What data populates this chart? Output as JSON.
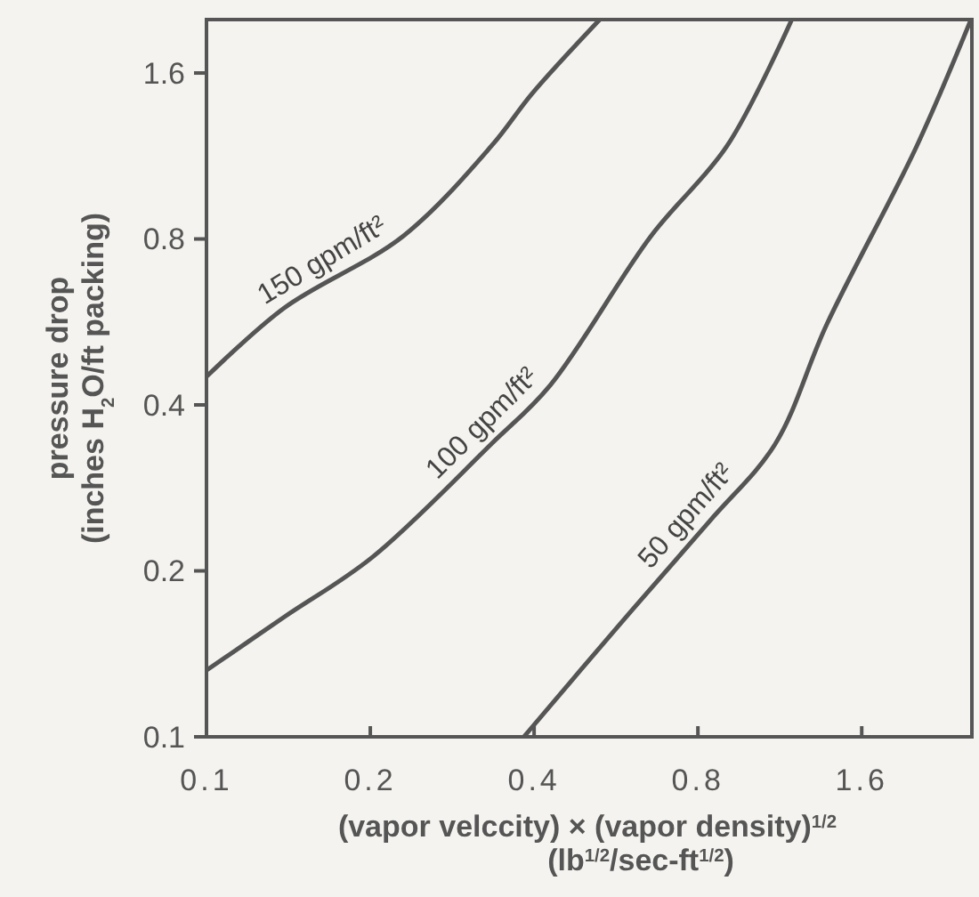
{
  "chart_data": {
    "type": "line",
    "xlabel": "(vapor velccity) × (vapor density)$^{1/2}$\n(lb$^{1/2}$/sec-ft$^{1/2}$)",
    "ylabel": "pressure drop\n(inches H$_{2}$O/ft packing)",
    "log": "xy",
    "xlim": [
      0.1,
      2.55
    ],
    "ylim": [
      0.1,
      2.0
    ],
    "xticks": [
      0.1,
      0.2,
      0.4,
      0.8,
      1.6
    ],
    "yticks": [
      0.1,
      0.2,
      0.4,
      0.8,
      1.6
    ],
    "grid": false,
    "marker": "none",
    "line_style": "solid",
    "series": [
      {
        "name": "150 gpm/ft²",
        "color": "#555555",
        "x": [
          0.1,
          0.139,
          0.23,
          0.334,
          0.397,
          0.528
        ],
        "values": [
          0.45,
          0.6,
          0.81,
          1.18,
          1.47,
          2.0
        ]
      },
      {
        "name": "100 gpm/ft²",
        "color": "#555555",
        "x": [
          0.1,
          0.139,
          0.202,
          0.334,
          0.428,
          0.656,
          0.905,
          1.19
        ],
        "values": [
          0.132,
          0.165,
          0.212,
          0.34,
          0.434,
          0.81,
          1.18,
          2.0
        ]
      },
      {
        "name": "50 gpm/ft²",
        "color": "#555555",
        "x": [
          0.383,
          0.578,
          0.84,
          1.11,
          1.38,
          2.02,
          2.54
        ],
        "values": [
          0.1,
          0.161,
          0.246,
          0.34,
          0.56,
          1.18,
          2.0
        ]
      }
    ]
  }
}
